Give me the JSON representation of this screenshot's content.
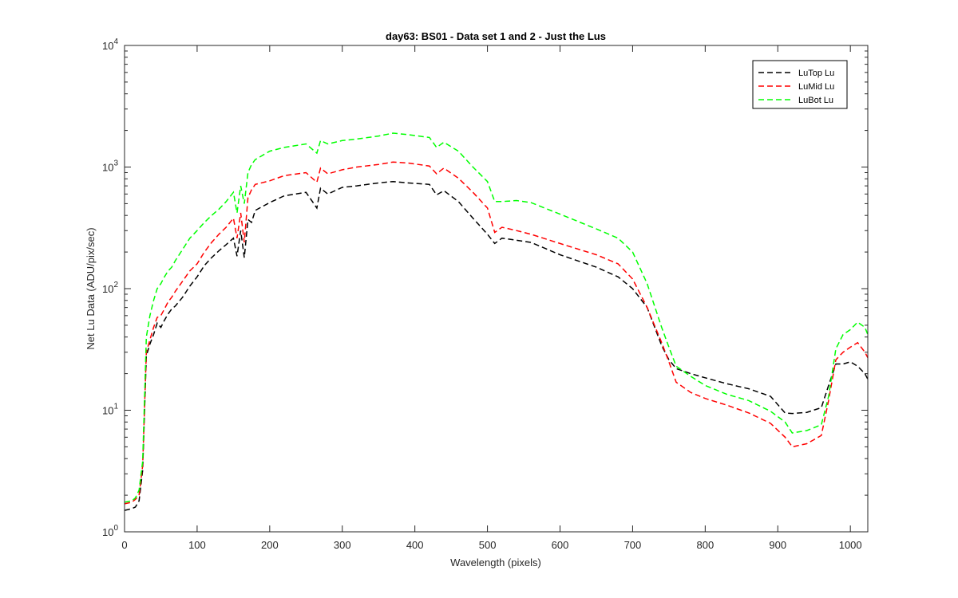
{
  "chart_data": {
    "type": "line",
    "title": "day63: BS01 - Data set 1 and 2 - Just the Lus",
    "xlabel": "Wavelength (pixels)",
    "ylabel": "Net Lu Data (ADU/pix/sec)",
    "xlim": [
      0,
      1024
    ],
    "ylim": [
      1,
      10000
    ],
    "yscale": "log",
    "xticks": [
      "0",
      "100",
      "200",
      "300",
      "400",
      "500",
      "600",
      "700",
      "800",
      "900",
      "1000"
    ],
    "yticks": [
      {
        "base": "10",
        "exp": "0"
      },
      {
        "base": "10",
        "exp": "1"
      },
      {
        "base": "10",
        "exp": "2"
      },
      {
        "base": "10",
        "exp": "3"
      },
      {
        "base": "10",
        "exp": "4"
      }
    ],
    "grid": false,
    "legend_position": "top-right",
    "line_style": "dashed",
    "series": [
      {
        "name": "LuTop  Lu",
        "color": "#000000",
        "x": [
          0,
          10,
          15,
          20,
          25,
          30,
          35,
          40,
          45,
          50,
          55,
          60,
          65,
          70,
          80,
          90,
          100,
          110,
          120,
          130,
          140,
          150,
          155,
          160,
          165,
          170,
          175,
          180,
          200,
          220,
          250,
          265,
          270,
          280,
          300,
          320,
          350,
          370,
          390,
          420,
          430,
          440,
          460,
          480,
          500,
          510,
          520,
          540,
          560,
          600,
          650,
          680,
          700,
          720,
          740,
          750,
          760,
          780,
          800,
          830,
          860,
          890,
          910,
          920,
          940,
          960,
          970,
          980,
          990,
          1000,
          1010,
          1020,
          1024
        ],
        "y": [
          1.5,
          1.55,
          1.6,
          1.8,
          3.2,
          28,
          35,
          42,
          52,
          48,
          55,
          62,
          68,
          72,
          85,
          105,
          125,
          155,
          180,
          205,
          230,
          260,
          185,
          300,
          180,
          370,
          350,
          440,
          510,
          580,
          620,
          460,
          670,
          600,
          680,
          700,
          740,
          760,
          740,
          720,
          590,
          640,
          520,
          380,
          280,
          235,
          260,
          250,
          240,
          190,
          150,
          125,
          100,
          70,
          34,
          26,
          22,
          20,
          18.5,
          16.5,
          15,
          13,
          9.5,
          9.4,
          9.6,
          10.5,
          16,
          24,
          24,
          25,
          23,
          20,
          18
        ]
      },
      {
        "name": "LuMid  Lu",
        "color": "#ff0000",
        "x": [
          0,
          10,
          15,
          20,
          25,
          30,
          35,
          40,
          45,
          50,
          55,
          60,
          65,
          70,
          80,
          90,
          100,
          110,
          120,
          130,
          140,
          150,
          155,
          160,
          165,
          170,
          175,
          180,
          200,
          220,
          250,
          265,
          270,
          280,
          300,
          320,
          350,
          370,
          390,
          420,
          430,
          440,
          460,
          480,
          500,
          510,
          520,
          540,
          560,
          600,
          650,
          680,
          700,
          720,
          740,
          750,
          760,
          780,
          800,
          830,
          860,
          890,
          910,
          920,
          940,
          960,
          970,
          980,
          990,
          1000,
          1010,
          1020,
          1024
        ],
        "y": [
          1.7,
          1.75,
          1.85,
          2.0,
          3.5,
          30,
          38,
          48,
          58,
          60,
          68,
          78,
          85,
          95,
          115,
          140,
          160,
          200,
          240,
          280,
          320,
          380,
          260,
          420,
          240,
          560,
          650,
          720,
          770,
          850,
          900,
          750,
          980,
          880,
          950,
          1000,
          1050,
          1100,
          1080,
          1020,
          880,
          980,
          810,
          620,
          460,
          290,
          320,
          300,
          280,
          235,
          190,
          160,
          120,
          70,
          36,
          25,
          17,
          14,
          12.5,
          11,
          9.5,
          7.8,
          6,
          5,
          5.3,
          6.2,
          12,
          26,
          30,
          33,
          36,
          30,
          27
        ]
      },
      {
        "name": "LuBot  Lu",
        "color": "#00ff00",
        "x": [
          0,
          10,
          15,
          20,
          25,
          30,
          35,
          40,
          45,
          50,
          55,
          60,
          65,
          70,
          80,
          90,
          100,
          110,
          120,
          130,
          140,
          150,
          155,
          160,
          165,
          170,
          175,
          180,
          200,
          220,
          250,
          265,
          270,
          280,
          300,
          320,
          350,
          370,
          390,
          420,
          430,
          440,
          460,
          480,
          500,
          510,
          520,
          540,
          560,
          600,
          650,
          680,
          700,
          720,
          740,
          750,
          760,
          780,
          800,
          830,
          860,
          890,
          910,
          920,
          940,
          960,
          970,
          980,
          990,
          1000,
          1010,
          1020,
          1024
        ],
        "y": [
          1.75,
          1.8,
          1.9,
          2.2,
          3.8,
          40,
          60,
          80,
          100,
          110,
          125,
          140,
          150,
          170,
          210,
          260,
          300,
          350,
          400,
          450,
          520,
          620,
          420,
          700,
          500,
          900,
          1050,
          1150,
          1350,
          1450,
          1550,
          1300,
          1650,
          1550,
          1650,
          1700,
          1800,
          1900,
          1850,
          1750,
          1450,
          1600,
          1350,
          1000,
          760,
          520,
          520,
          530,
          510,
          410,
          310,
          260,
          200,
          110,
          48,
          33,
          23,
          19,
          16,
          13.5,
          12,
          9.8,
          8,
          6.5,
          6.8,
          7.6,
          13,
          32,
          42,
          46,
          53,
          48,
          42
        ]
      }
    ]
  }
}
